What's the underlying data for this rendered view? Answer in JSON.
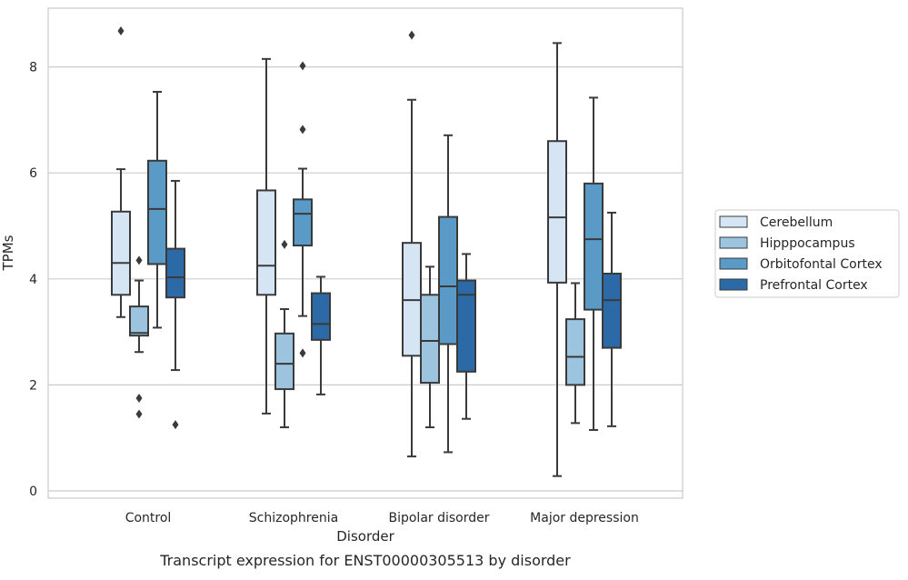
{
  "chart_data": {
    "type": "box",
    "title": "",
    "xlabel": "Disorder",
    "ylabel": "TPMs",
    "caption": "Transcript expression for ENST00000305513 by disorder",
    "ylim": [
      -0.15,
      9.1
    ],
    "y_ticks": [
      0,
      2,
      4,
      6,
      8
    ],
    "grid": "horizontal",
    "legend_position": "right",
    "categories": [
      "Control",
      "Schizophrenia",
      "Bipolar disorder",
      "Major depression"
    ],
    "series": [
      {
        "name": "Cerebellum",
        "color": "#d6e5f4",
        "boxes": [
          {
            "whisker_low": 3.28,
            "q1": 3.7,
            "median": 4.3,
            "q3": 5.27,
            "whisker_high": 6.07,
            "outliers": [
              8.68
            ]
          },
          {
            "whisker_low": 1.46,
            "q1": 3.7,
            "median": 4.25,
            "q3": 5.67,
            "whisker_high": 8.15,
            "outliers": []
          },
          {
            "whisker_low": 0.65,
            "q1": 2.55,
            "median": 3.6,
            "q3": 4.68,
            "whisker_high": 7.38,
            "outliers": [
              8.6
            ]
          },
          {
            "whisker_low": 0.28,
            "q1": 3.93,
            "median": 5.16,
            "q3": 6.6,
            "whisker_high": 8.45,
            "outliers": []
          }
        ]
      },
      {
        "name": "Hipppocampus",
        "color": "#9cc4de",
        "boxes": [
          {
            "whisker_low": 2.62,
            "q1": 2.93,
            "median": 2.98,
            "q3": 3.48,
            "whisker_high": 3.97,
            "outliers": [
              4.35,
              1.75,
              1.45
            ]
          },
          {
            "whisker_low": 1.2,
            "q1": 1.92,
            "median": 2.4,
            "q3": 2.97,
            "whisker_high": 3.43,
            "outliers": [
              4.65
            ]
          },
          {
            "whisker_low": 1.2,
            "q1": 2.04,
            "median": 2.83,
            "q3": 3.7,
            "whisker_high": 4.23,
            "outliers": []
          },
          {
            "whisker_low": 1.28,
            "q1": 2.0,
            "median": 2.53,
            "q3": 3.24,
            "whisker_high": 3.92,
            "outliers": []
          }
        ]
      },
      {
        "name": "Orbitofontal Cortex",
        "color": "#5a9ac6",
        "boxes": [
          {
            "whisker_low": 3.08,
            "q1": 4.28,
            "median": 5.32,
            "q3": 6.23,
            "whisker_high": 7.53,
            "outliers": []
          },
          {
            "whisker_low": 3.3,
            "q1": 4.63,
            "median": 5.23,
            "q3": 5.5,
            "whisker_high": 6.08,
            "outliers": [
              8.02,
              6.82,
              2.6
            ]
          },
          {
            "whisker_low": 0.73,
            "q1": 2.77,
            "median": 3.86,
            "q3": 5.17,
            "whisker_high": 6.71,
            "outliers": []
          },
          {
            "whisker_low": 1.15,
            "q1": 3.42,
            "median": 4.75,
            "q3": 5.8,
            "whisker_high": 7.42,
            "outliers": []
          }
        ]
      },
      {
        "name": "Prefrontal Cortex",
        "color": "#2b6aa7",
        "boxes": [
          {
            "whisker_low": 2.28,
            "q1": 3.65,
            "median": 4.03,
            "q3": 4.57,
            "whisker_high": 5.85,
            "outliers": [
              1.25
            ]
          },
          {
            "whisker_low": 1.82,
            "q1": 2.85,
            "median": 3.15,
            "q3": 3.73,
            "whisker_high": 4.04,
            "outliers": []
          },
          {
            "whisker_low": 1.36,
            "q1": 2.25,
            "median": 3.7,
            "q3": 3.97,
            "whisker_high": 4.47,
            "outliers": []
          },
          {
            "whisker_low": 1.22,
            "q1": 2.7,
            "median": 3.6,
            "q3": 4.1,
            "whisker_high": 5.25,
            "outliers": []
          }
        ]
      }
    ]
  }
}
